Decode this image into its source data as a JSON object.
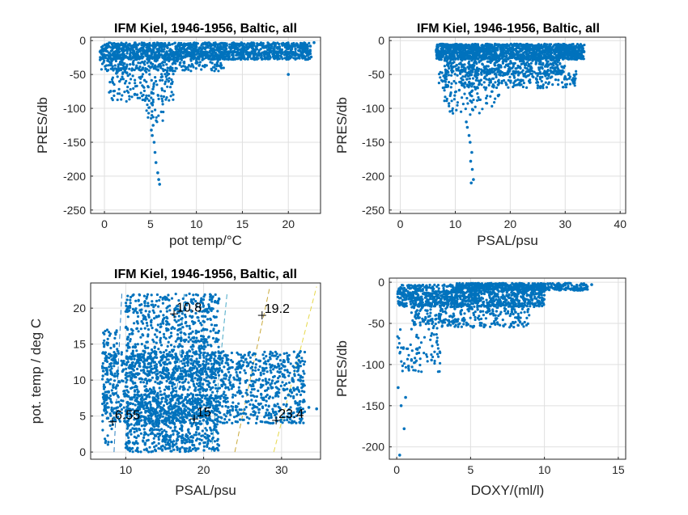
{
  "chart_data": [
    {
      "id": "tl",
      "type": "scatter",
      "title": "IFM Kiel, 1946-1956, Baltic, all",
      "xlabel": "pot temp/°C",
      "ylabel": "PRES/db",
      "xlim": [
        -1.5,
        23.5
      ],
      "ylim": [
        -255,
        5
      ],
      "xticks": [
        0,
        5,
        10,
        15,
        20
      ],
      "yticks": [
        0,
        -50,
        -100,
        -150,
        -200,
        -250
      ],
      "grid": true,
      "color": "#0072BD",
      "clusters": [
        {
          "x": [
            -0.5,
            22.5
          ],
          "y": [
            -28,
            -3
          ],
          "n": 1400
        },
        {
          "x": [
            -0.5,
            13
          ],
          "y": [
            -45,
            -20
          ],
          "n": 300
        },
        {
          "x": [
            0.5,
            7.5
          ],
          "y": [
            -90,
            -40
          ],
          "n": 160
        },
        {
          "x": [
            4.5,
            6.5
          ],
          "y": [
            -120,
            -80
          ],
          "n": 30
        }
      ],
      "points": [
        [
          5.2,
          -140
        ],
        [
          5.4,
          -150
        ],
        [
          5.5,
          -165
        ],
        [
          5.6,
          -180
        ],
        [
          5.8,
          -195
        ],
        [
          5.9,
          -205
        ],
        [
          6.0,
          -212
        ],
        [
          5.3,
          -125
        ],
        [
          5.1,
          -132
        ],
        [
          20.0,
          -50
        ],
        [
          21.5,
          -10
        ],
        [
          22.8,
          -3
        ]
      ]
    },
    {
      "id": "tr",
      "type": "scatter",
      "title": "IFM Kiel, 1946-1956, Baltic, all",
      "xlabel": "PSAL/psu",
      "ylabel": "PRES/db",
      "xlim": [
        -2,
        41
      ],
      "ylim": [
        -255,
        5
      ],
      "xticks": [
        0,
        10,
        20,
        30,
        40
      ],
      "yticks": [
        0,
        -50,
        -100,
        -150,
        -200,
        -250
      ],
      "grid": true,
      "color": "#0072BD",
      "clusters": [
        {
          "x": [
            6.5,
            33.5
          ],
          "y": [
            -28,
            -5
          ],
          "n": 1400
        },
        {
          "x": [
            8,
            30
          ],
          "y": [
            -50,
            -25
          ],
          "n": 400
        },
        {
          "x": [
            7,
            32
          ],
          "y": [
            -70,
            -45
          ],
          "n": 250
        },
        {
          "x": [
            8,
            18
          ],
          "y": [
            -110,
            -60
          ],
          "n": 100
        }
      ],
      "points": [
        [
          12.5,
          -140
        ],
        [
          12.7,
          -150
        ],
        [
          13.0,
          -165
        ],
        [
          12.8,
          -178
        ],
        [
          13.1,
          -190
        ],
        [
          13.3,
          -205
        ],
        [
          12.9,
          -210
        ],
        [
          12.2,
          -128
        ],
        [
          12.0,
          -120
        ]
      ]
    },
    {
      "id": "bl",
      "type": "scatter",
      "title": "IFM Kiel, 1946-1956, Baltic, all",
      "xlabel": "PSAL/psu",
      "ylabel": "pot. temp / deg C",
      "xlim": [
        5.5,
        35
      ],
      "ylim": [
        -1,
        23.5
      ],
      "xticks": [
        10,
        20,
        30
      ],
      "yticks": [
        0,
        5,
        10,
        15,
        20
      ],
      "grid": true,
      "color": "#0072BD",
      "clusters": [
        {
          "x": [
            7,
            33
          ],
          "y": [
            4,
            14
          ],
          "n": 1500
        },
        {
          "x": [
            10,
            22
          ],
          "y": [
            0,
            8
          ],
          "n": 700
        },
        {
          "x": [
            10,
            22
          ],
          "y": [
            10,
            22
          ],
          "n": 700
        },
        {
          "x": [
            7,
            9
          ],
          "y": [
            1,
            17
          ],
          "n": 80
        }
      ],
      "points": [
        [
          32,
          6
        ],
        [
          33.5,
          6.2
        ],
        [
          34.5,
          6.0
        ],
        [
          29,
          5.5
        ],
        [
          30.5,
          7.5
        ]
      ],
      "isopycnals": [
        {
          "x1": 8.5,
          "y1": 0,
          "x2": 9.5,
          "y2": 22,
          "color": "#2a7fc0"
        },
        {
          "x1": 16,
          "y1": 0,
          "x2": 17.5,
          "y2": 22,
          "color": "#3399cc"
        },
        {
          "x1": 21,
          "y1": 0,
          "x2": 23,
          "y2": 22,
          "color": "#4aa9c7"
        },
        {
          "x1": 24,
          "y1": 0,
          "x2": 28.5,
          "y2": 23,
          "color": "#c9a93a"
        },
        {
          "x1": 29,
          "y1": 0,
          "x2": 34.5,
          "y2": 23,
          "color": "#e6d84a"
        }
      ],
      "markers": [
        {
          "x": 8.3,
          "y": 4.2,
          "label": "6.55"
        },
        {
          "x": 18.8,
          "y": 4.6,
          "label": "15"
        },
        {
          "x": 29.3,
          "y": 4.4,
          "label": "23.4"
        },
        {
          "x": 16.2,
          "y": 19.2,
          "label": "10.8"
        },
        {
          "x": 27.5,
          "y": 19.0,
          "label": "19.2"
        }
      ]
    },
    {
      "id": "br",
      "type": "scatter",
      "title": "",
      "xlabel": "DOXY/(ml/l)",
      "ylabel": "PRES/db",
      "xlim": [
        -0.5,
        15.5
      ],
      "ylim": [
        -215,
        5
      ],
      "xticks": [
        0,
        5,
        10,
        15
      ],
      "yticks": [
        0,
        -50,
        -100,
        -150,
        -200
      ],
      "grid": true,
      "color": "#0072BD",
      "clusters": [
        {
          "x": [
            0,
            10
          ],
          "y": [
            -30,
            -3
          ],
          "n": 1000
        },
        {
          "x": [
            4,
            13
          ],
          "y": [
            -10,
            -1
          ],
          "n": 400
        },
        {
          "x": [
            1,
            9
          ],
          "y": [
            -55,
            -25
          ],
          "n": 300
        },
        {
          "x": [
            0,
            3
          ],
          "y": [
            -110,
            -55
          ],
          "n": 80
        }
      ],
      "points": [
        [
          0.3,
          -150
        ],
        [
          0.5,
          -178
        ],
        [
          0.2,
          -210
        ],
        [
          0.1,
          -128
        ],
        [
          0.6,
          -140
        ],
        [
          1.0,
          -95
        ],
        [
          0.8,
          -102
        ],
        [
          12.5,
          -2
        ],
        [
          13.2,
          -3
        ]
      ]
    }
  ]
}
